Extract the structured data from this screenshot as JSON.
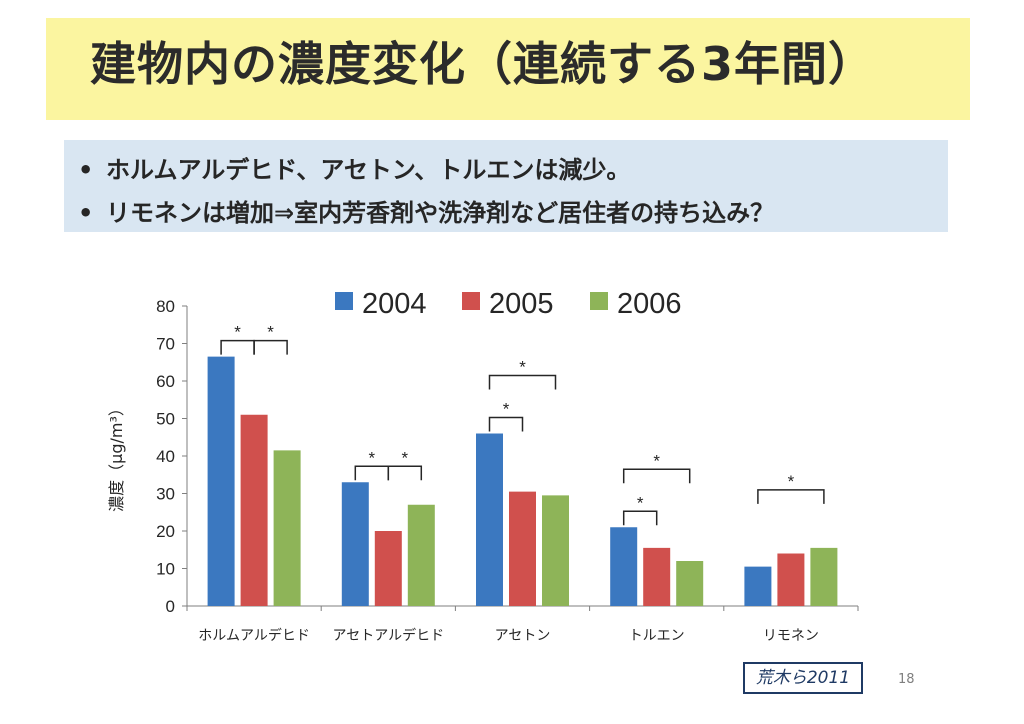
{
  "slide": {
    "title": "建物内の濃度変化（連続する3年間）",
    "bullets": [
      "ホルムアルデヒド、アセトン、トルエンは減少。",
      "リモネンは増加⇒室内芳香剤や洗浄剤など居住者の持ち込み？"
    ],
    "citation": "荒木ら2011",
    "page_number": "18"
  },
  "chart_data": {
    "type": "bar",
    "title": "",
    "xlabel": "",
    "ylabel": "濃度（μg/m³）",
    "ylim": [
      0,
      80
    ],
    "yticks": [
      0,
      10,
      20,
      30,
      40,
      50,
      60,
      70,
      80
    ],
    "categories": [
      "ホルムアルデヒド",
      "アセトアルデヒド",
      "アセトン",
      "トルエン",
      "リモネン"
    ],
    "series": [
      {
        "name": "2004",
        "color": "#3b78c0",
        "values": [
          66.5,
          33,
          46,
          21,
          10.5
        ]
      },
      {
        "name": "2005",
        "color": "#d0504d",
        "values": [
          51,
          20,
          30.5,
          15.5,
          14
        ]
      },
      {
        "name": "2006",
        "color": "#8eb458",
        "values": [
          41.5,
          27,
          29.5,
          12,
          15.5
        ]
      }
    ],
    "legend_position": "top",
    "grid": false,
    "significance": [
      {
        "category": 0,
        "from": "2004",
        "to": "2005",
        "label": "*"
      },
      {
        "category": 0,
        "from": "2005",
        "to": "2006",
        "label": "*"
      },
      {
        "category": 1,
        "from": "2004",
        "to": "2005",
        "label": "*"
      },
      {
        "category": 1,
        "from": "2005",
        "to": "2006",
        "label": "*"
      },
      {
        "category": 2,
        "from": "2004",
        "to": "2005",
        "label": "*"
      },
      {
        "category": 2,
        "from": "2004",
        "to": "2006",
        "label": "*"
      },
      {
        "category": 3,
        "from": "2004",
        "to": "2005",
        "label": "*"
      },
      {
        "category": 3,
        "from": "2004",
        "to": "2006",
        "label": "*"
      },
      {
        "category": 4,
        "from": "2004",
        "to": "2006",
        "label": "*"
      }
    ]
  }
}
